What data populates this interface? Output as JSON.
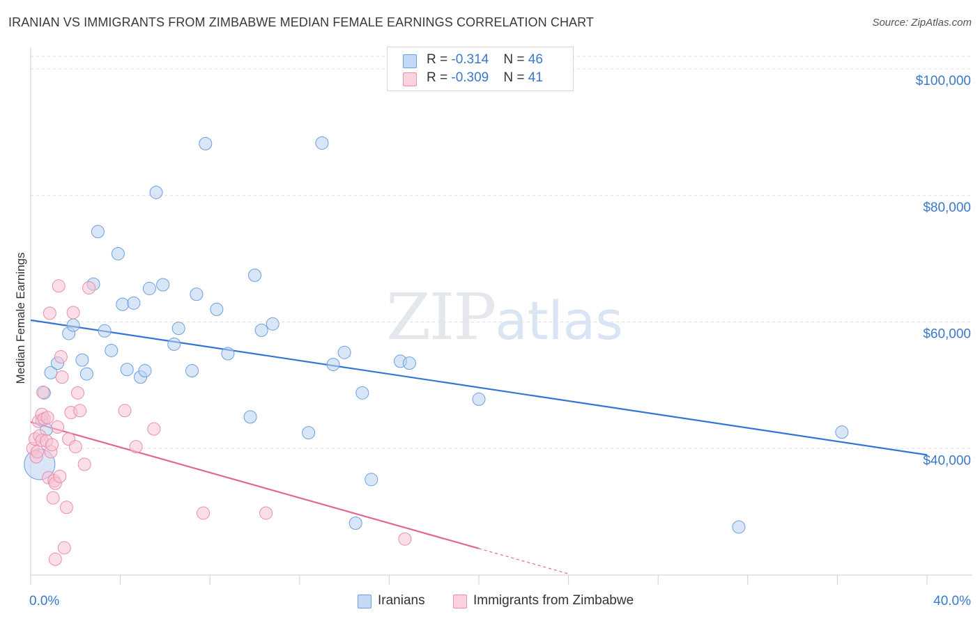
{
  "title": "IRANIAN VS IMMIGRANTS FROM ZIMBABWE MEDIAN FEMALE EARNINGS CORRELATION CHART",
  "source": "Source: ZipAtlas.com",
  "watermark": {
    "zip": "ZIP",
    "atlas": "atlas"
  },
  "legend": {
    "rows": [
      {
        "r_label": "R = ",
        "r_value": "-0.314",
        "n_label": "N = ",
        "n_value": "46",
        "color": "#a9c8ee"
      },
      {
        "r_label": "R = ",
        "r_value": "-0.309",
        "n_label": "N = ",
        "n_value": "41",
        "color": "#f6b6c8"
      }
    ]
  },
  "bottom_legend": [
    "Iranians",
    "Immigrants from Zimbabwe"
  ],
  "chart_data": {
    "type": "scatter",
    "title": "IRANIAN VS IMMIGRANTS FROM ZIMBABWE MEDIAN FEMALE EARNINGS CORRELATION CHART",
    "ylabel": "Median Female Earnings",
    "xlabel": "",
    "xlim": [
      0,
      40
    ],
    "ylim": [
      20000,
      102000
    ],
    "x_tick_labels": [
      {
        "x": 0,
        "label": "0.0%"
      },
      {
        "x": 40,
        "label": "40.0%"
      }
    ],
    "y_ticks": [
      {
        "y": 40000,
        "label": "$40,000"
      },
      {
        "y": 60000,
        "label": "$60,000"
      },
      {
        "y": 80000,
        "label": "$80,000"
      },
      {
        "y": 100000,
        "label": "$100,000"
      }
    ],
    "grid": true,
    "series": [
      {
        "name": "Iranians",
        "color": "#6b9fe0",
        "fill": "#b9d2f3",
        "line_color": "#3374d4",
        "trend": {
          "x0": 0,
          "y0": 60300,
          "x1": 40,
          "y1": 39000
        },
        "points": [
          [
            0.4,
            37500
          ],
          [
            0.5,
            44500
          ],
          [
            0.6,
            48800
          ],
          [
            0.7,
            43000
          ],
          [
            0.9,
            52000
          ],
          [
            1.2,
            53500
          ],
          [
            1.7,
            58200
          ],
          [
            1.9,
            59500
          ],
          [
            2.3,
            54000
          ],
          [
            2.5,
            51800
          ],
          [
            2.8,
            66000
          ],
          [
            3.0,
            74300
          ],
          [
            3.3,
            58600
          ],
          [
            3.6,
            55500
          ],
          [
            3.9,
            70800
          ],
          [
            4.1,
            62800
          ],
          [
            4.3,
            52500
          ],
          [
            4.6,
            63000
          ],
          [
            4.9,
            51300
          ],
          [
            5.1,
            52300
          ],
          [
            5.3,
            65300
          ],
          [
            5.6,
            80500
          ],
          [
            5.9,
            65900
          ],
          [
            6.4,
            56500
          ],
          [
            6.6,
            59000
          ],
          [
            7.2,
            52300
          ],
          [
            7.4,
            64400
          ],
          [
            7.8,
            88200
          ],
          [
            8.3,
            62000
          ],
          [
            8.8,
            55000
          ],
          [
            9.8,
            45000
          ],
          [
            10.0,
            67400
          ],
          [
            10.3,
            58700
          ],
          [
            10.8,
            59700
          ],
          [
            12.4,
            42500
          ],
          [
            13.0,
            88300
          ],
          [
            13.5,
            53300
          ],
          [
            14.0,
            55200
          ],
          [
            14.5,
            28200
          ],
          [
            14.8,
            48800
          ],
          [
            15.2,
            35100
          ],
          [
            16.5,
            53800
          ],
          [
            16.9,
            53500
          ],
          [
            20.0,
            47800
          ],
          [
            31.6,
            27600
          ],
          [
            36.2,
            42600
          ]
        ]
      },
      {
        "name": "Immigrants from Zimbabwe",
        "color": "#ea8eaa",
        "fill": "#f8c3d3",
        "line_color": "#e06690",
        "trend": {
          "x0": 0,
          "y0": 44200,
          "x1": 20,
          "y1": 24200,
          "dash_x1": 24,
          "dash_y1": 20200
        },
        "points": [
          [
            0.1,
            40000
          ],
          [
            0.2,
            41500
          ],
          [
            0.25,
            38700
          ],
          [
            0.3,
            39500
          ],
          [
            0.35,
            44300
          ],
          [
            0.4,
            42000
          ],
          [
            0.5,
            41300
          ],
          [
            0.5,
            45400
          ],
          [
            0.55,
            48900
          ],
          [
            0.6,
            44700
          ],
          [
            0.7,
            41200
          ],
          [
            0.75,
            44900
          ],
          [
            0.8,
            35400
          ],
          [
            0.85,
            61400
          ],
          [
            0.9,
            39500
          ],
          [
            0.95,
            40600
          ],
          [
            1.0,
            32200
          ],
          [
            1.05,
            34900
          ],
          [
            1.1,
            22500
          ],
          [
            1.1,
            34500
          ],
          [
            1.2,
            43400
          ],
          [
            1.25,
            65700
          ],
          [
            1.3,
            35600
          ],
          [
            1.35,
            54500
          ],
          [
            1.4,
            51300
          ],
          [
            1.5,
            24300
          ],
          [
            1.6,
            30700
          ],
          [
            1.7,
            41500
          ],
          [
            1.8,
            45700
          ],
          [
            1.9,
            61500
          ],
          [
            2.0,
            40300
          ],
          [
            2.1,
            48800
          ],
          [
            2.2,
            46000
          ],
          [
            2.4,
            37500
          ],
          [
            2.6,
            65400
          ],
          [
            4.2,
            46000
          ],
          [
            4.7,
            40300
          ],
          [
            5.5,
            43100
          ],
          [
            7.7,
            29800
          ],
          [
            10.5,
            29800
          ],
          [
            16.7,
            25700
          ]
        ]
      }
    ]
  }
}
